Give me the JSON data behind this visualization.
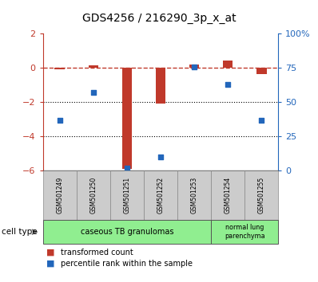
{
  "title": "GDS4256 / 216290_3p_x_at",
  "samples": [
    "GSM501249",
    "GSM501250",
    "GSM501251",
    "GSM501252",
    "GSM501253",
    "GSM501254",
    "GSM501255"
  ],
  "transformed_count": [
    -0.07,
    0.15,
    -5.9,
    -2.1,
    0.2,
    0.45,
    -0.35
  ],
  "percentile_rank": [
    37,
    57,
    2,
    10,
    76,
    63,
    37
  ],
  "ylim_left": [
    -6,
    2
  ],
  "ylim_right": [
    0,
    100
  ],
  "yticks_left": [
    -6,
    -4,
    -2,
    0,
    2
  ],
  "yticks_right": [
    0,
    25,
    50,
    75,
    100
  ],
  "ytick_labels_right": [
    "0",
    "25",
    "50",
    "75",
    "100%"
  ],
  "red_color": "#c0392b",
  "blue_color": "#2266bb",
  "bar_width": 0.3,
  "dotted_lines": [
    -2,
    -4
  ],
  "group1_label": "caseous TB granulomas",
  "group1_count": 5,
  "group2_label": "normal lung\nparenchyma",
  "group2_count": 2,
  "group_color": "#90ee90",
  "sample_box_color": "#cccccc",
  "cell_type_label": "cell type",
  "legend1_label": "transformed count",
  "legend2_label": "percentile rank within the sample"
}
